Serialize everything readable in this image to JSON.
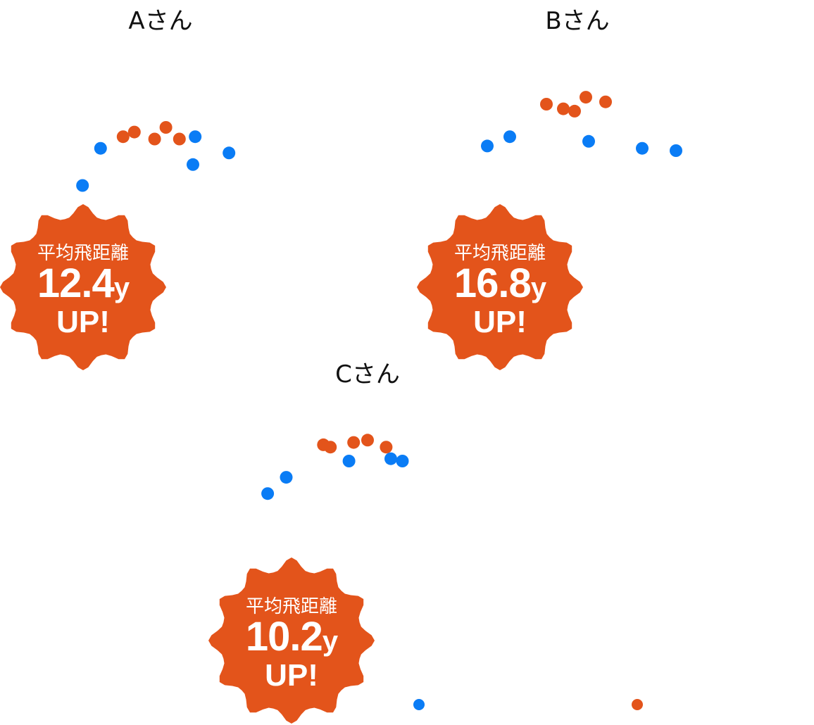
{
  "colors": {
    "before": "#0a7cf5",
    "after": "#e3541b",
    "badge": "#e3541b",
    "badge_text": "#ffffff"
  },
  "legend": {
    "before_label": "",
    "after_label": ""
  },
  "chart_data": [
    {
      "type": "scatter",
      "title": "Aさん",
      "badge": {
        "label": "平均飛距離",
        "value": "12.4",
        "unit": "y",
        "suffix": "UP!"
      },
      "series": [
        {
          "color": "#0a7cf5",
          "points": [
            [
              -3.4,
              1.5
            ],
            [
              -2.6,
              3.1
            ],
            [
              1.6,
              3.6
            ],
            [
              1.5,
              2.4
            ],
            [
              3.1,
              2.9
            ]
          ]
        },
        {
          "color": "#e3541b",
          "points": [
            [
              -1.6,
              3.6
            ],
            [
              -1.1,
              3.8
            ],
            [
              -0.2,
              3.5
            ],
            [
              0.3,
              4.0
            ],
            [
              0.9,
              3.5
            ]
          ]
        }
      ]
    },
    {
      "type": "scatter",
      "title": "Bさん",
      "badge": {
        "label": "平均飛距離",
        "value": "16.8",
        "unit": "y",
        "suffix": "UP!"
      },
      "series": [
        {
          "color": "#0a7cf5",
          "points": [
            [
              -3.2,
              3.2
            ],
            [
              -2.4,
              3.6
            ],
            [
              0.4,
              3.4
            ],
            [
              2.3,
              3.1
            ],
            [
              3.5,
              3.0
            ]
          ]
        },
        {
          "color": "#e3541b",
          "points": [
            [
              -1.1,
              5.0
            ],
            [
              -0.5,
              4.8
            ],
            [
              -0.1,
              4.7
            ],
            [
              0.3,
              5.3
            ],
            [
              1.0,
              5.1
            ]
          ]
        }
      ]
    },
    {
      "type": "scatter",
      "title": "Cさん",
      "badge": {
        "label": "平均飛距離",
        "value": "10.2",
        "unit": "y",
        "suffix": "UP!"
      },
      "series": [
        {
          "color": "#0a7cf5",
          "points": [
            [
              -3.3,
              1.6
            ],
            [
              -2.5,
              2.3
            ],
            [
              0.2,
              3.0
            ],
            [
              2.0,
              3.1
            ],
            [
              2.5,
              3.0
            ]
          ]
        },
        {
          "color": "#e3541b",
          "points": [
            [
              -0.9,
              3.7
            ],
            [
              -0.6,
              3.6
            ],
            [
              0.4,
              3.8
            ],
            [
              1.0,
              3.9
            ],
            [
              1.8,
              3.6
            ]
          ]
        }
      ]
    }
  ],
  "offchart_points": [
    {
      "color": "#0a7cf5",
      "series": 0
    },
    {
      "color": "#e3541b",
      "series": 1
    }
  ]
}
